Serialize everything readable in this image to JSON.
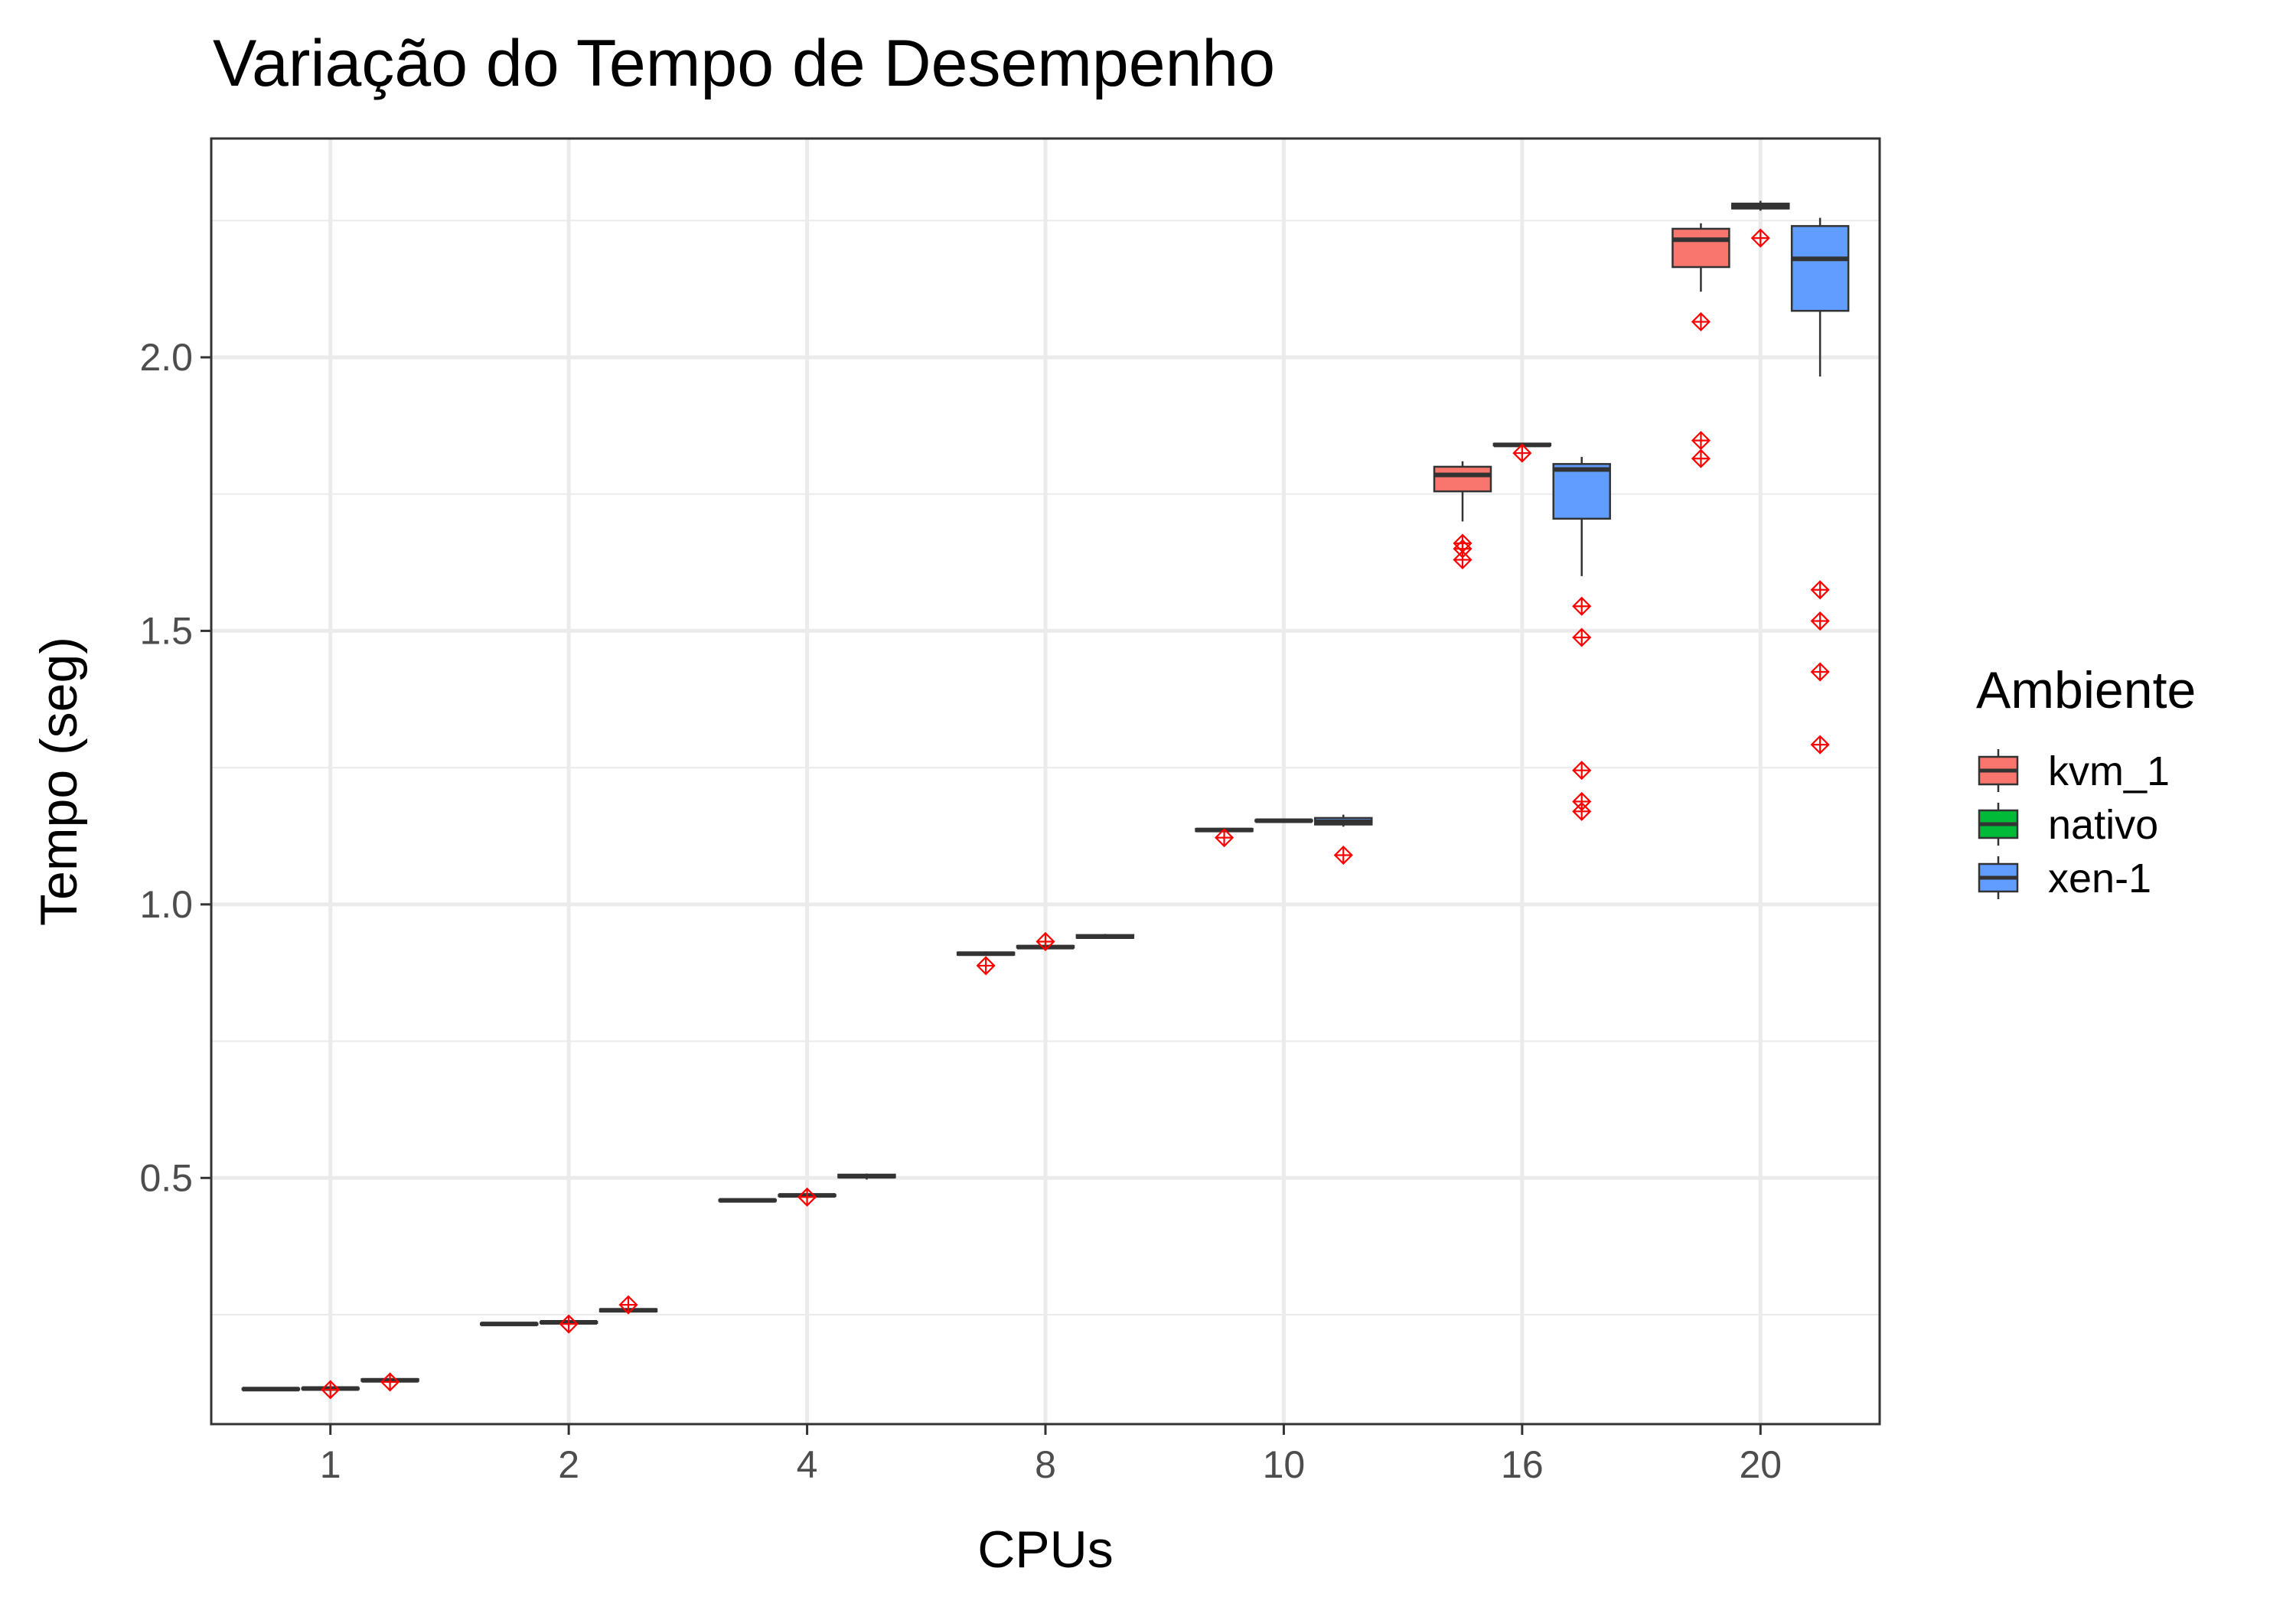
{
  "chart_data": {
    "type": "box",
    "title": "Variação do Tempo de Desempenho",
    "xlabel": "CPUs",
    "ylabel": "Tempo (seg)",
    "categories": [
      "1",
      "2",
      "4",
      "8",
      "10",
      "16",
      "20"
    ],
    "ylim": [
      0.05,
      2.4
    ],
    "yticks": [
      "0.5",
      "1.0",
      "1.5",
      "2.0"
    ],
    "ytick_values": [
      0.5,
      1.0,
      1.5,
      2.0
    ],
    "grid": true,
    "legend": {
      "title": "Ambiente",
      "placement": "right"
    },
    "outlier_color": "#ff0000",
    "series": [
      {
        "name": "kvm_1",
        "color": "#f8766d",
        "boxes": [
          {
            "min": 0.112,
            "q1": 0.113,
            "median": 0.114,
            "q3": 0.115,
            "max": 0.116,
            "outliers": []
          },
          {
            "min": 0.231,
            "q1": 0.232,
            "median": 0.233,
            "q3": 0.234,
            "max": 0.235,
            "outliers": []
          },
          {
            "min": 0.457,
            "q1": 0.458,
            "median": 0.459,
            "q3": 0.46,
            "max": 0.461,
            "outliers": []
          },
          {
            "min": 0.906,
            "q1": 0.908,
            "median": 0.91,
            "q3": 0.912,
            "max": 0.914,
            "outliers": [
              0.888
            ]
          },
          {
            "min": 1.133,
            "q1": 1.134,
            "median": 1.136,
            "q3": 1.138,
            "max": 1.14,
            "outliers": [
              1.122
            ]
          },
          {
            "min": 1.7,
            "q1": 1.755,
            "median": 1.785,
            "q3": 1.8,
            "max": 1.81,
            "outliers": [
              1.66,
              1.65,
              1.63
            ]
          },
          {
            "min": 2.12,
            "q1": 2.165,
            "median": 2.215,
            "q3": 2.235,
            "max": 2.245,
            "outliers": [
              2.065,
              1.848,
              1.815
            ]
          }
        ]
      },
      {
        "name": "nativo",
        "color": "#00ba38",
        "boxes": [
          {
            "min": 0.113,
            "q1": 0.114,
            "median": 0.115,
            "q3": 0.116,
            "max": 0.117,
            "outliers": [
              0.113
            ]
          },
          {
            "min": 0.234,
            "q1": 0.235,
            "median": 0.236,
            "q3": 0.237,
            "max": 0.238,
            "outliers": [
              0.233
            ]
          },
          {
            "min": 0.466,
            "q1": 0.467,
            "median": 0.468,
            "q3": 0.469,
            "max": 0.47,
            "outliers": [
              0.465
            ]
          },
          {
            "min": 0.919,
            "q1": 0.921,
            "median": 0.922,
            "q3": 0.924,
            "max": 0.926,
            "outliers": [
              0.932
            ]
          },
          {
            "min": 1.151,
            "q1": 1.152,
            "median": 1.153,
            "q3": 1.154,
            "max": 1.155,
            "outliers": []
          },
          {
            "min": 1.838,
            "q1": 1.839,
            "median": 1.84,
            "q3": 1.842,
            "max": 1.844,
            "outliers": [
              1.825
            ]
          },
          {
            "min": 2.268,
            "q1": 2.272,
            "median": 2.276,
            "q3": 2.281,
            "max": 2.286,
            "outliers": [
              2.218
            ]
          }
        ]
      },
      {
        "name": "xen-1",
        "color": "#619cff",
        "boxes": [
          {
            "min": 0.128,
            "q1": 0.129,
            "median": 0.13,
            "q3": 0.132,
            "max": 0.134,
            "outliers": [
              0.127
            ]
          },
          {
            "min": 0.254,
            "q1": 0.256,
            "median": 0.258,
            "q3": 0.26,
            "max": 0.262,
            "outliers": [
              0.268
            ]
          },
          {
            "min": 0.497,
            "q1": 0.501,
            "median": 0.503,
            "q3": 0.506,
            "max": 0.508,
            "outliers": []
          },
          {
            "min": 0.937,
            "q1": 0.939,
            "median": 0.941,
            "q3": 0.944,
            "max": 0.946,
            "outliers": []
          },
          {
            "min": 1.142,
            "q1": 1.146,
            "median": 1.151,
            "q3": 1.158,
            "max": 1.164,
            "outliers": [
              1.09
            ]
          },
          {
            "min": 1.6,
            "q1": 1.705,
            "median": 1.795,
            "q3": 1.805,
            "max": 1.818,
            "outliers": [
              1.545,
              1.488,
              1.245,
              1.188,
              1.17
            ]
          },
          {
            "min": 1.965,
            "q1": 2.085,
            "median": 2.18,
            "q3": 2.24,
            "max": 2.255,
            "outliers": [
              1.575,
              1.518,
              1.425,
              1.292
            ]
          }
        ]
      }
    ]
  }
}
